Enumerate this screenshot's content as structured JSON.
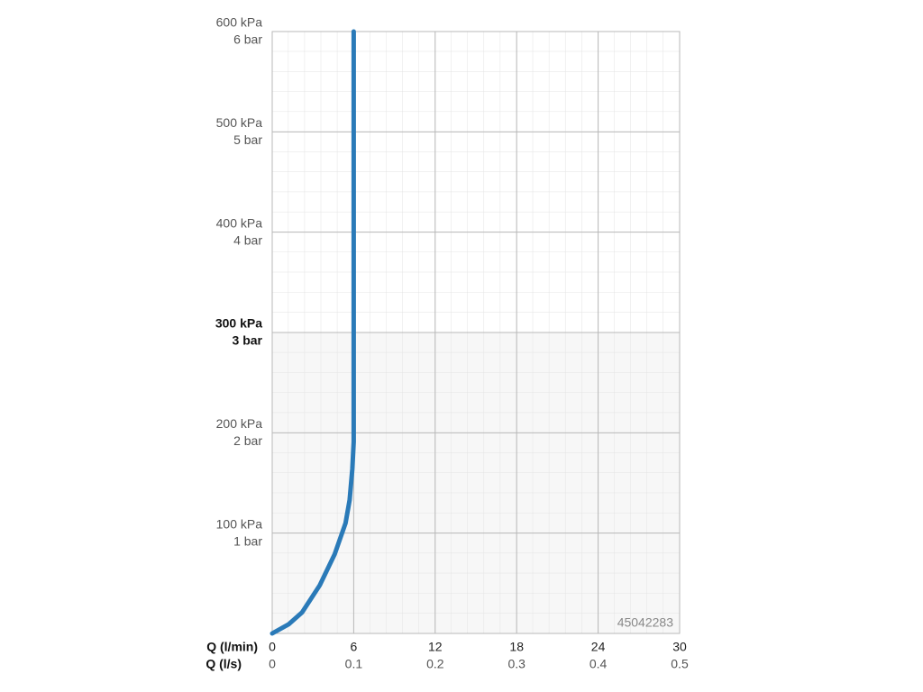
{
  "chart_data": {
    "type": "line",
    "xlabel": "Q (l/min)",
    "x2label": "Q (l/s)",
    "annotation": "45042283",
    "xlim": [
      0,
      30
    ],
    "xticks": [
      0,
      6,
      12,
      18,
      24,
      30
    ],
    "x2lim": [
      0,
      0.5
    ],
    "x2ticks": [
      0,
      0.1,
      0.2,
      0.3,
      0.4,
      0.5
    ],
    "ylim": [
      0,
      600
    ],
    "yticks": [
      {
        "value": 100,
        "label": "100 kPa"
      },
      {
        "value": 200,
        "label": "200 kPa"
      },
      {
        "value": 300,
        "label": "300 kPa"
      },
      {
        "value": 400,
        "label": "400 kPa"
      },
      {
        "value": 500,
        "label": "500 kPa"
      },
      {
        "value": 600,
        "label": "600 kPa"
      }
    ],
    "y2lim": [
      0,
      6
    ],
    "y2ticks": [
      {
        "value": 1,
        "label": "1 bar"
      },
      {
        "value": 2,
        "label": "2 bar"
      },
      {
        "value": 3,
        "label": "3 bar"
      },
      {
        "value": 4,
        "label": "4 bar"
      },
      {
        "value": 5,
        "label": "5 bar"
      },
      {
        "value": 6,
        "label": "6 bar"
      }
    ],
    "grid": true,
    "x": [
      0,
      1.2,
      2.2,
      3.5,
      4.6,
      5.4,
      5.7,
      5.9,
      6.0,
      6.0
    ],
    "series": [
      {
        "color": "#2a7ab8",
        "values": [
          0,
          9,
          21,
          48,
          79,
          110,
          133,
          164,
          191,
          600
        ]
      }
    ]
  }
}
